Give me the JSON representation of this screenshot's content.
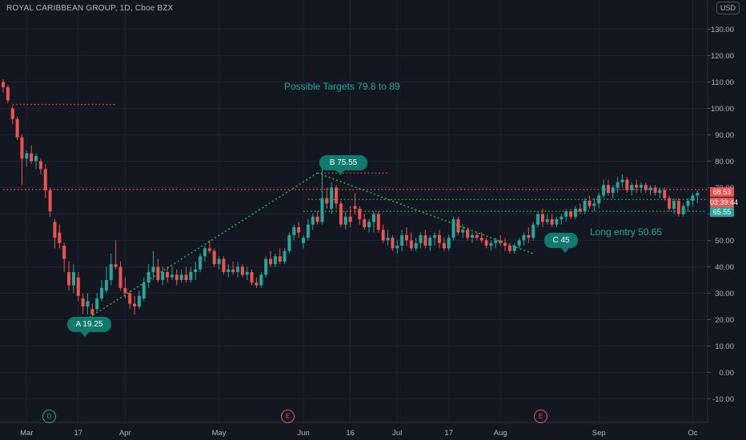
{
  "header": {
    "title": "ROYAL CARIBBEAN GROUP, 1D, Cboe BZX",
    "currency": "USD"
  },
  "annotations": {
    "targets": "Possible Targets  79.8 to 89",
    "long_entry": "Long entry  50.65",
    "a_label": "A 19.25",
    "b_label": "B   75.55",
    "c_label": "C 45"
  },
  "price_tags": {
    "last_price": "68.53",
    "countdown": "03:39:44",
    "level": "65.55"
  },
  "events": [
    {
      "label": "D",
      "index": 9
    },
    {
      "label": "E",
      "index": 57
    },
    {
      "label": "E",
      "index": 113
    }
  ],
  "colors": {
    "background": "#131722",
    "grid": "#1f2330",
    "up": "#26a69a",
    "down": "#ef5350",
    "annotation": "#26a69a",
    "trendline": "#2dbd3a",
    "bubble": "#0f7a6e"
  },
  "chart_data": {
    "type": "candlestick",
    "title": "ROYAL CARIBBEAN GROUP, 1D, Cboe BZX",
    "y_ticks": [
      130,
      120,
      110,
      100,
      90,
      80,
      70,
      60,
      50,
      40,
      30,
      20,
      10,
      0,
      -10
    ],
    "y_tick_labels": [
      "130.00",
      "120.00",
      "110.00",
      "100.00",
      "90.00",
      "80.00",
      "70.00",
      "60.00",
      "50.00",
      "40.00",
      "30.00",
      "20.00",
      "10.00",
      "0.00",
      "-10.00"
    ],
    "ylim": [
      -16,
      141
    ],
    "x_tick_labels": [
      {
        "label": "Mar",
        "index": 5
      },
      {
        "label": "17",
        "index": 16
      },
      {
        "label": "Apr",
        "index": 26
      },
      {
        "label": "May",
        "index": 46
      },
      {
        "label": "Jun",
        "index": 64
      },
      {
        "label": "16",
        "index": 74
      },
      {
        "label": "Jul",
        "index": 84
      },
      {
        "label": "17",
        "index": 95
      },
      {
        "label": "Aug",
        "index": 106
      },
      {
        "label": "Sep",
        "index": 127
      },
      {
        "label": "Oc",
        "index": 147
      }
    ],
    "candles": [
      [
        110,
        111,
        106,
        108
      ],
      [
        108,
        109,
        102,
        103
      ],
      [
        100,
        101,
        94,
        96
      ],
      [
        96,
        97,
        88,
        89
      ],
      [
        89,
        90,
        71,
        81
      ],
      [
        81,
        84,
        78,
        83
      ],
      [
        83,
        86,
        79,
        80
      ],
      [
        80,
        83,
        77,
        82
      ],
      [
        80,
        81,
        75,
        77
      ],
      [
        77,
        79,
        66,
        69
      ],
      [
        69,
        70,
        59,
        61
      ],
      [
        57,
        58,
        47,
        51
      ],
      [
        53,
        56,
        47,
        49
      ],
      [
        48,
        49,
        38,
        43
      ],
      [
        38,
        42,
        31,
        33
      ],
      [
        33,
        41,
        30,
        38
      ],
      [
        36,
        38,
        27,
        29
      ],
      [
        28,
        30,
        22,
        25
      ],
      [
        25,
        30,
        22,
        27
      ],
      [
        24,
        26,
        20,
        22
      ],
      [
        24,
        30,
        23,
        28
      ],
      [
        28,
        35,
        27,
        32
      ],
      [
        31,
        40,
        30,
        35
      ],
      [
        35,
        45,
        33,
        41
      ],
      [
        41,
        50,
        39,
        40
      ],
      [
        40,
        42,
        31,
        32
      ],
      [
        32,
        36,
        28,
        30
      ],
      [
        30,
        31,
        24,
        26
      ],
      [
        26,
        29,
        22,
        25
      ],
      [
        25,
        31,
        24,
        29
      ],
      [
        28,
        36,
        27,
        34
      ],
      [
        34,
        41,
        32,
        38
      ],
      [
        38,
        46,
        35,
        40
      ],
      [
        40,
        43,
        34,
        35
      ],
      [
        35,
        40,
        33,
        38
      ],
      [
        38,
        40,
        34,
        36
      ],
      [
        36,
        40,
        35,
        37
      ],
      [
        37,
        39,
        33,
        35
      ],
      [
        35,
        39,
        34,
        37
      ],
      [
        37,
        40,
        34,
        35
      ],
      [
        35,
        40,
        34,
        38
      ],
      [
        38,
        42,
        35,
        39
      ],
      [
        39,
        45,
        38,
        44
      ],
      [
        44,
        48,
        42,
        47
      ],
      [
        47,
        50,
        45,
        46
      ],
      [
        46,
        47,
        40,
        41
      ],
      [
        41,
        44,
        39,
        43
      ],
      [
        43,
        44,
        37,
        38
      ],
      [
        38,
        41,
        36,
        39
      ],
      [
        39,
        42,
        37,
        38
      ],
      [
        38,
        42,
        36,
        40
      ],
      [
        40,
        41,
        36,
        37
      ],
      [
        37,
        40,
        35,
        38
      ],
      [
        38,
        39,
        33,
        34
      ],
      [
        34,
        36,
        32,
        33
      ],
      [
        33,
        38,
        32,
        37
      ],
      [
        37,
        44,
        36,
        43
      ],
      [
        43,
        46,
        40,
        41
      ],
      [
        41,
        45,
        40,
        44
      ],
      [
        44,
        47,
        41,
        42
      ],
      [
        42,
        47,
        41,
        46
      ],
      [
        46,
        53,
        45,
        52
      ],
      [
        52,
        56,
        50,
        55
      ],
      [
        55,
        57,
        51,
        53
      ],
      [
        49,
        52,
        47,
        51
      ],
      [
        51,
        58,
        50,
        56
      ],
      [
        56,
        60,
        54,
        59
      ],
      [
        59,
        61,
        56,
        57
      ],
      [
        57,
        78,
        56,
        66
      ],
      [
        66,
        70,
        62,
        64
      ],
      [
        62,
        72,
        60,
        70
      ],
      [
        70,
        71,
        62,
        64
      ],
      [
        64,
        65,
        55,
        56
      ],
      [
        56,
        61,
        54,
        59
      ],
      [
        59,
        63,
        55,
        57
      ],
      [
        63,
        68,
        60,
        62
      ],
      [
        62,
        63,
        56,
        58
      ],
      [
        58,
        60,
        54,
        55
      ],
      [
        55,
        58,
        53,
        57
      ],
      [
        57,
        61,
        53,
        60
      ],
      [
        60,
        61,
        53,
        54
      ],
      [
        54,
        56,
        49,
        50
      ],
      [
        50,
        54,
        48,
        51
      ],
      [
        51,
        52,
        46,
        47
      ],
      [
        47,
        50,
        45,
        48
      ],
      [
        48,
        54,
        46,
        52
      ],
      [
        52,
        55,
        48,
        50
      ],
      [
        50,
        53,
        46,
        47
      ],
      [
        47,
        51,
        46,
        49
      ],
      [
        49,
        53,
        47,
        52
      ],
      [
        52,
        54,
        47,
        48
      ],
      [
        48,
        52,
        46,
        51
      ],
      [
        51,
        53,
        48,
        52
      ],
      [
        52,
        54,
        47,
        49
      ],
      [
        49,
        51,
        46,
        47
      ],
      [
        47,
        52,
        46,
        51
      ],
      [
        51,
        59,
        50,
        58
      ],
      [
        58,
        59,
        52,
        53
      ],
      [
        53,
        56,
        51,
        54
      ],
      [
        54,
        55,
        50,
        51
      ],
      [
        51,
        53,
        49,
        52
      ],
      [
        52,
        53,
        50,
        51
      ],
      [
        51,
        53,
        49,
        50
      ],
      [
        50,
        51,
        47,
        48
      ],
      [
        48,
        50,
        46,
        49
      ],
      [
        49,
        51,
        47,
        50
      ],
      [
        50,
        52,
        48,
        49
      ],
      [
        49,
        51,
        46,
        48
      ],
      [
        48,
        49,
        45,
        46
      ],
      [
        46,
        49,
        45,
        48
      ],
      [
        48,
        51,
        47,
        50
      ],
      [
        50,
        53,
        48,
        52
      ],
      [
        52,
        55,
        49,
        51
      ],
      [
        51,
        57,
        50,
        56
      ],
      [
        56,
        61,
        55,
        60
      ],
      [
        60,
        62,
        55,
        57
      ],
      [
        57,
        60,
        56,
        58
      ],
      [
        58,
        60,
        55,
        56
      ],
      [
        56,
        59,
        55,
        58
      ],
      [
        58,
        60,
        56,
        59
      ],
      [
        59,
        62,
        57,
        61
      ],
      [
        61,
        62,
        58,
        59
      ],
      [
        59,
        63,
        58,
        62
      ],
      [
        62,
        64,
        60,
        61
      ],
      [
        61,
        66,
        60,
        65
      ],
      [
        65,
        67,
        62,
        63
      ],
      [
        63,
        66,
        61,
        64
      ],
      [
        64,
        68,
        62,
        67
      ],
      [
        67,
        73,
        66,
        71
      ],
      [
        71,
        73,
        67,
        68
      ],
      [
        68,
        71,
        66,
        70
      ],
      [
        70,
        74,
        68,
        72
      ],
      [
        72,
        75,
        70,
        73
      ],
      [
        73,
        74,
        68,
        69
      ],
      [
        69,
        72,
        67,
        71
      ],
      [
        71,
        73,
        68,
        70
      ],
      [
        70,
        72,
        68,
        71
      ],
      [
        71,
        72,
        68,
        69
      ],
      [
        69,
        71,
        67,
        70
      ],
      [
        70,
        71,
        67,
        68
      ],
      [
        68,
        70,
        66,
        69
      ],
      [
        69,
        70,
        65,
        66
      ],
      [
        66,
        67,
        61,
        62
      ],
      [
        62,
        66,
        60,
        65
      ],
      [
        65,
        66,
        59,
        60
      ],
      [
        60,
        64,
        59,
        63
      ],
      [
        63,
        66,
        61,
        65
      ],
      [
        65,
        68,
        63,
        67
      ],
      [
        67,
        69,
        64,
        68
      ]
    ],
    "levels": [
      {
        "value": 101.5,
        "from_index": 2,
        "to_index": 24,
        "color": "#ef5350",
        "style": "dotted"
      },
      {
        "value": 75.5,
        "from_index": 67,
        "to_index": 82,
        "color": "#ef5350",
        "style": "dotted"
      },
      {
        "value": 69.3,
        "from_index": 0,
        "to_index": 150,
        "color": "#ef5350",
        "style": "dotted"
      },
      {
        "value": 65.5,
        "from_index": 65,
        "to_index": 150,
        "color": "#2dbd3a",
        "style": "dotted"
      },
      {
        "value": 61.0,
        "from_index": 64,
        "to_index": 150,
        "color": "#2dbd3a",
        "style": "dotted"
      }
    ],
    "trendlines": [
      {
        "from": [
          17,
          19.25
        ],
        "to": [
          67,
          75.55
        ]
      },
      {
        "from": [
          67,
          75.55
        ],
        "to": [
          113,
          45
        ]
      }
    ]
  }
}
